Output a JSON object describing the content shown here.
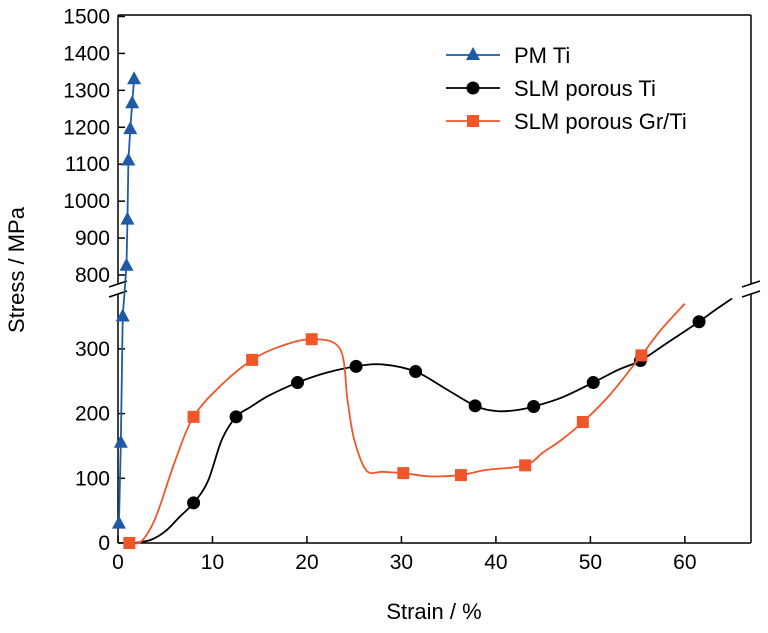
{
  "chart_data": {
    "type": "line",
    "xlabel": "Strain /  %",
    "ylabel": "Stress / MPa",
    "xlim": [
      0,
      67
    ],
    "x_ticks": [
      "0",
      "10",
      "20",
      "30",
      "40",
      "50",
      "60"
    ],
    "y_ticks_lower": [
      "0",
      "100",
      "200",
      "300"
    ],
    "y_ticks_upper": [
      "800",
      "900",
      "1000",
      "1100",
      "1200",
      "1300",
      "1400",
      "1500"
    ],
    "broken_y_axis": {
      "lower_range": [
        0,
        380
      ],
      "upper_range": [
        770,
        1500
      ]
    },
    "legend_position": "top-right",
    "series": [
      {
        "name": "PM Ti",
        "color": "#1f5aa6",
        "marker": "triangle",
        "points": [
          [
            0.1,
            30
          ],
          [
            0.3,
            155
          ],
          [
            0.5,
            350
          ],
          [
            0.9,
            825
          ],
          [
            1.0,
            950
          ],
          [
            1.1,
            1110
          ],
          [
            1.3,
            1195
          ],
          [
            1.5,
            1265
          ],
          [
            1.7,
            1330
          ]
        ]
      },
      {
        "name": "SLM porous Ti",
        "color": "#000000",
        "marker": "circle",
        "points": [
          [
            8,
            62
          ],
          [
            12.5,
            195
          ],
          [
            19,
            248
          ],
          [
            25.2,
            273
          ],
          [
            31.5,
            265
          ],
          [
            37.8,
            212
          ],
          [
            44,
            211
          ],
          [
            50.3,
            248
          ],
          [
            55.3,
            282
          ],
          [
            61.5,
            342
          ]
        ],
        "curve": [
          [
            1.8,
            0
          ],
          [
            3.5,
            5
          ],
          [
            5,
            18
          ],
          [
            6.5,
            40
          ],
          [
            8,
            62
          ],
          [
            9.5,
            95
          ],
          [
            11,
            160
          ],
          [
            12.5,
            195
          ],
          [
            14,
            210
          ],
          [
            16,
            228
          ],
          [
            19,
            248
          ],
          [
            22,
            263
          ],
          [
            25.2,
            273
          ],
          [
            28,
            276
          ],
          [
            31.5,
            265
          ],
          [
            34.5,
            240
          ],
          [
            37.8,
            212
          ],
          [
            40,
            204
          ],
          [
            42,
            205
          ],
          [
            44,
            211
          ],
          [
            47,
            225
          ],
          [
            50.3,
            248
          ],
          [
            53,
            268
          ],
          [
            55.3,
            282
          ],
          [
            58,
            308
          ],
          [
            61.5,
            342
          ],
          [
            63,
            358
          ],
          [
            65,
            378
          ]
        ]
      },
      {
        "name": "SLM porous Gr/Ti",
        "color": "#f0562a",
        "marker": "square",
        "points": [
          [
            1.2,
            0
          ],
          [
            8,
            195
          ],
          [
            14.2,
            283
          ],
          [
            20.5,
            315
          ],
          [
            30.2,
            108
          ],
          [
            36.3,
            105
          ],
          [
            43.1,
            120
          ],
          [
            49.2,
            187
          ],
          [
            55.4,
            290
          ]
        ],
        "curve": [
          [
            1.2,
            0
          ],
          [
            2.5,
            3
          ],
          [
            4,
            40
          ],
          [
            6,
            125
          ],
          [
            8,
            195
          ],
          [
            11,
            245
          ],
          [
            14.2,
            283
          ],
          [
            17,
            303
          ],
          [
            20.5,
            315
          ],
          [
            23.5,
            300
          ],
          [
            24.3,
            220
          ],
          [
            25,
            160
          ],
          [
            26.3,
            112
          ],
          [
            28,
            110
          ],
          [
            30.2,
            108
          ],
          [
            33,
            103
          ],
          [
            36.3,
            105
          ],
          [
            39,
            113
          ],
          [
            43.1,
            120
          ],
          [
            45,
            140
          ],
          [
            47,
            160
          ],
          [
            49.2,
            187
          ],
          [
            52,
            228
          ],
          [
            55.4,
            290
          ],
          [
            57.5,
            330
          ],
          [
            60,
            370
          ]
        ]
      }
    ]
  }
}
